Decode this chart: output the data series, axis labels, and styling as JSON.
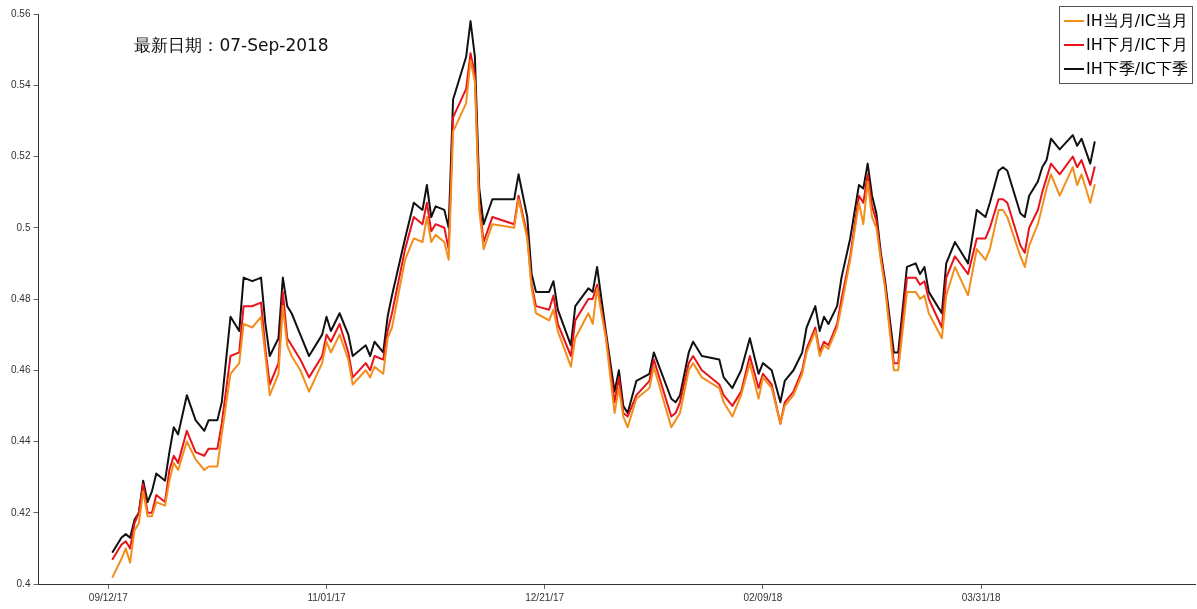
{
  "chart_data": {
    "type": "line",
    "annotations": [
      "最新日期：07-Sep-2018"
    ],
    "legend": "top right",
    "xlim": [
      "2017-08-27",
      "2018-05-19"
    ],
    "xticks": [
      {
        "value": "2017-09-12",
        "label": "09/12/17"
      },
      {
        "value": "2017-11-01",
        "label": "11/01/17"
      },
      {
        "value": "2017-12-21",
        "label": "12/21/17"
      },
      {
        "value": "2018-02-09",
        "label": "02/09/18"
      },
      {
        "value": "2018-03-31",
        "label": "03/31/18"
      }
    ],
    "ylim": [
      0.4,
      0.56
    ],
    "yticks": [
      0.4,
      0.42,
      0.44,
      0.46,
      0.48,
      0.5,
      0.52,
      0.54,
      0.56
    ],
    "x": [
      "2017-09-13",
      "2017-09-15",
      "2017-09-16",
      "2017-09-17",
      "2017-09-18",
      "2017-09-19",
      "2017-09-20",
      "2017-09-21",
      "2017-09-22",
      "2017-09-23",
      "2017-09-25",
      "2017-09-26",
      "2017-09-27",
      "2017-09-28",
      "2017-09-30",
      "2017-10-02",
      "2017-10-04",
      "2017-10-05",
      "2017-10-07",
      "2017-10-08",
      "2017-10-10",
      "2017-10-12",
      "2017-10-13",
      "2017-10-15",
      "2017-10-17",
      "2017-10-18",
      "2017-10-19",
      "2017-10-21",
      "2017-10-22",
      "2017-10-23",
      "2017-10-24",
      "2017-10-26",
      "2017-10-28",
      "2017-10-31",
      "2017-11-01",
      "2017-11-02",
      "2017-11-04",
      "2017-11-06",
      "2017-11-07",
      "2017-11-10",
      "2017-11-11",
      "2017-11-12",
      "2017-11-14",
      "2017-11-15",
      "2017-11-16",
      "2017-11-19",
      "2017-11-21",
      "2017-11-23",
      "2017-11-24",
      "2017-11-25",
      "2017-11-26",
      "2017-11-28",
      "2017-11-29",
      "2017-11-30",
      "2017-12-03",
      "2017-12-04",
      "2017-12-05",
      "2017-12-06",
      "2017-12-07",
      "2017-12-09",
      "2017-12-14",
      "2017-12-15",
      "2017-12-17",
      "2017-12-18",
      "2017-12-19",
      "2017-12-22",
      "2017-12-23",
      "2017-12-24",
      "2017-12-27",
      "2017-12-28",
      "2017-12-31",
      "2018-01-01",
      "2018-01-02",
      "2018-01-04",
      "2018-01-06",
      "2018-01-07",
      "2018-01-08",
      "2018-01-09",
      "2018-01-11",
      "2018-01-14",
      "2018-01-15",
      "2018-01-19",
      "2018-01-20",
      "2018-01-21",
      "2018-01-23",
      "2018-01-24",
      "2018-01-26",
      "2018-01-30",
      "2018-01-31",
      "2018-02-02",
      "2018-02-04",
      "2018-02-06",
      "2018-02-08",
      "2018-02-09",
      "2018-02-11",
      "2018-02-13",
      "2018-02-14",
      "2018-02-16",
      "2018-02-18",
      "2018-02-19",
      "2018-02-21",
      "2018-02-22",
      "2018-02-23",
      "2018-02-24",
      "2018-02-26",
      "2018-02-27",
      "2018-03-01",
      "2018-03-03",
      "2018-03-04",
      "2018-03-05",
      "2018-03-06",
      "2018-03-07",
      "2018-03-08",
      "2018-03-09",
      "2018-03-11",
      "2018-03-12",
      "2018-03-14",
      "2018-03-16",
      "2018-03-17",
      "2018-03-18",
      "2018-03-19",
      "2018-03-22",
      "2018-03-23",
      "2018-03-25",
      "2018-03-28",
      "2018-03-30",
      "2018-04-01",
      "2018-04-02",
      "2018-04-04",
      "2018-04-05",
      "2018-04-06",
      "2018-04-09",
      "2018-04-10",
      "2018-04-11",
      "2018-04-13",
      "2018-04-14",
      "2018-04-15",
      "2018-04-16",
      "2018-04-18",
      "2018-04-21",
      "2018-04-22",
      "2018-04-23",
      "2018-04-25",
      "2018-04-26"
    ],
    "series": [
      {
        "name": "IH当月/IC当月",
        "color": "#f28e1c",
        "values": [
          0.402,
          0.407,
          0.41,
          0.406,
          0.415,
          0.417,
          0.426,
          0.419,
          0.419,
          0.423,
          0.422,
          0.429,
          0.434,
          0.432,
          0.44,
          0.435,
          0.432,
          0.433,
          0.433,
          0.442,
          0.459,
          0.462,
          0.473,
          0.472,
          0.475,
          0.464,
          0.453,
          0.459,
          0.478,
          0.467,
          0.464,
          0.46,
          0.454,
          0.462,
          0.468,
          0.465,
          0.47,
          0.463,
          0.456,
          0.46,
          0.458,
          0.461,
          0.459,
          0.469,
          0.472,
          0.491,
          0.497,
          0.496,
          0.503,
          0.496,
          0.498,
          0.496,
          0.491,
          0.527,
          0.535,
          0.547,
          0.541,
          0.505,
          0.494,
          0.501,
          0.5,
          0.508,
          0.497,
          0.483,
          0.476,
          0.474,
          0.477,
          0.471,
          0.461,
          0.469,
          0.476,
          0.473,
          0.483,
          0.469,
          0.448,
          0.455,
          0.447,
          0.444,
          0.452,
          0.455,
          0.461,
          0.444,
          0.446,
          0.448,
          0.46,
          0.462,
          0.458,
          0.455,
          0.451,
          0.447,
          0.453,
          0.462,
          0.452,
          0.458,
          0.455,
          0.445,
          0.45,
          0.453,
          0.459,
          0.465,
          0.471,
          0.464,
          0.467,
          0.466,
          0.472,
          0.478,
          0.491,
          0.507,
          0.501,
          0.513,
          0.503,
          0.5,
          0.491,
          0.483,
          0.46,
          0.46,
          0.482,
          0.482,
          0.48,
          0.481,
          0.476,
          0.469,
          0.481,
          0.489,
          0.481,
          0.494,
          0.491,
          0.494,
          0.505,
          0.505,
          0.503,
          0.492,
          0.489,
          0.495,
          0.501,
          0.506,
          0.511,
          0.515,
          0.509,
          0.517,
          0.512,
          0.515,
          0.507,
          0.512
        ]
      },
      {
        "name": "IH下月/IC下月",
        "color": "#e8141c",
        "values": [
          0.407,
          0.411,
          0.412,
          0.41,
          0.417,
          0.42,
          0.428,
          0.42,
          0.42,
          0.425,
          0.423,
          0.432,
          0.436,
          0.434,
          0.443,
          0.437,
          0.436,
          0.438,
          0.438,
          0.445,
          0.464,
          0.465,
          0.478,
          0.478,
          0.479,
          0.466,
          0.456,
          0.462,
          0.482,
          0.469,
          0.467,
          0.463,
          0.458,
          0.464,
          0.47,
          0.468,
          0.473,
          0.465,
          0.458,
          0.462,
          0.46,
          0.464,
          0.463,
          0.471,
          0.476,
          0.494,
          0.503,
          0.501,
          0.507,
          0.499,
          0.501,
          0.5,
          0.494,
          0.531,
          0.539,
          0.549,
          0.543,
          0.507,
          0.496,
          0.503,
          0.501,
          0.509,
          0.498,
          0.484,
          0.478,
          0.477,
          0.481,
          0.473,
          0.464,
          0.474,
          0.48,
          0.48,
          0.484,
          0.47,
          0.451,
          0.458,
          0.448,
          0.447,
          0.453,
          0.457,
          0.463,
          0.447,
          0.448,
          0.451,
          0.462,
          0.464,
          0.46,
          0.456,
          0.453,
          0.45,
          0.454,
          0.464,
          0.455,
          0.459,
          0.456,
          0.445,
          0.451,
          0.454,
          0.46,
          0.466,
          0.472,
          0.465,
          0.468,
          0.467,
          0.473,
          0.48,
          0.492,
          0.509,
          0.507,
          0.515,
          0.506,
          0.502,
          0.492,
          0.484,
          0.462,
          0.462,
          0.486,
          0.486,
          0.484,
          0.485,
          0.48,
          0.472,
          0.486,
          0.492,
          0.487,
          0.497,
          0.497,
          0.5,
          0.508,
          0.508,
          0.507,
          0.495,
          0.493,
          0.5,
          0.505,
          0.51,
          0.514,
          0.518,
          0.515,
          0.52,
          0.517,
          0.519,
          0.512,
          0.517
        ]
      },
      {
        "name": "IH下季/IC下季",
        "color": "#111111",
        "values": [
          0.409,
          0.413,
          0.414,
          0.413,
          0.418,
          0.42,
          0.429,
          0.423,
          0.426,
          0.431,
          0.429,
          0.437,
          0.444,
          0.442,
          0.453,
          0.446,
          0.443,
          0.446,
          0.446,
          0.451,
          0.475,
          0.471,
          0.486,
          0.485,
          0.486,
          0.473,
          0.464,
          0.469,
          0.486,
          0.478,
          0.476,
          0.47,
          0.464,
          0.47,
          0.475,
          0.471,
          0.476,
          0.47,
          0.464,
          0.467,
          0.464,
          0.468,
          0.465,
          0.475,
          0.481,
          0.497,
          0.507,
          0.505,
          0.512,
          0.503,
          0.506,
          0.505,
          0.5,
          0.536,
          0.548,
          0.558,
          0.548,
          0.511,
          0.501,
          0.508,
          0.508,
          0.515,
          0.503,
          0.487,
          0.482,
          0.482,
          0.485,
          0.477,
          0.467,
          0.478,
          0.483,
          0.482,
          0.489,
          0.471,
          0.454,
          0.46,
          0.45,
          0.448,
          0.457,
          0.459,
          0.465,
          0.452,
          0.451,
          0.453,
          0.465,
          0.468,
          0.464,
          0.463,
          0.458,
          0.455,
          0.46,
          0.469,
          0.459,
          0.462,
          0.46,
          0.451,
          0.457,
          0.46,
          0.465,
          0.472,
          0.478,
          0.471,
          0.475,
          0.473,
          0.478,
          0.486,
          0.497,
          0.512,
          0.511,
          0.518,
          0.509,
          0.504,
          0.493,
          0.485,
          0.465,
          0.465,
          0.489,
          0.49,
          0.487,
          0.489,
          0.482,
          0.476,
          0.49,
          0.496,
          0.49,
          0.505,
          0.503,
          0.507,
          0.516,
          0.517,
          0.516,
          0.504,
          0.503,
          0.509,
          0.513,
          0.517,
          0.519,
          0.525,
          0.522,
          0.526,
          0.523,
          0.525,
          0.518,
          0.524
        ]
      }
    ]
  }
}
